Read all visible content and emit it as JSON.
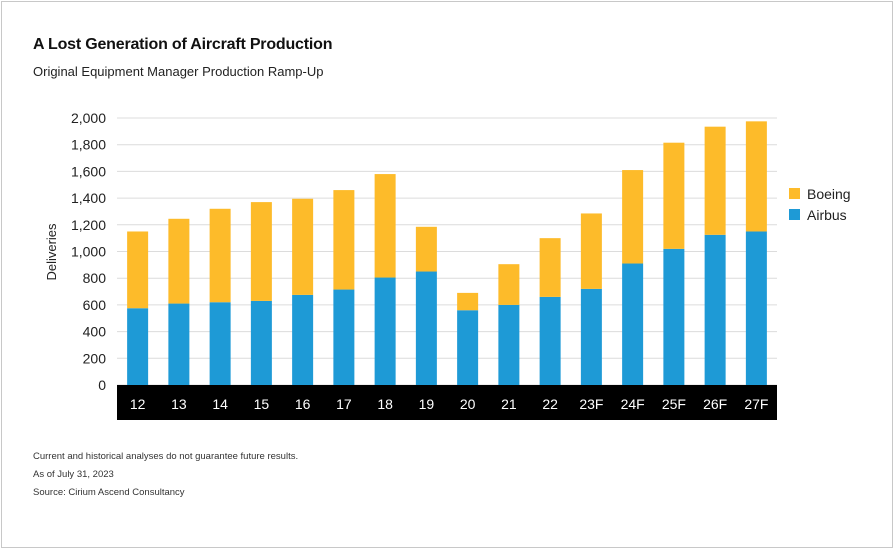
{
  "header": {
    "title": "A Lost Generation of Aircraft Production",
    "subtitle": "Original Equipment Manager Production Ramp-Up"
  },
  "footnotes": [
    "Current and historical analyses do not guarantee future results.",
    "As of July 31, 2023",
    "Source: Cirium Ascend Consultancy"
  ],
  "chart_data": {
    "type": "bar",
    "stacked": true,
    "categories": [
      "12",
      "13",
      "14",
      "15",
      "16",
      "17",
      "18",
      "19",
      "20",
      "21",
      "22",
      "23F",
      "24F",
      "25F",
      "26F",
      "27F"
    ],
    "series": [
      {
        "name": "Airbus",
        "color": "#1e9ad6",
        "values": [
          575,
          610,
          620,
          630,
          675,
          715,
          805,
          850,
          560,
          600,
          660,
          720,
          910,
          1020,
          1125,
          1150
        ]
      },
      {
        "name": "Boeing",
        "color": "#fdbb2a",
        "values": [
          575,
          635,
          700,
          740,
          720,
          745,
          775,
          335,
          130,
          305,
          440,
          565,
          700,
          795,
          810,
          825
        ]
      }
    ],
    "ylabel": "Deliveries",
    "ylim": [
      0,
      2000
    ],
    "yticks": [
      0,
      200,
      400,
      600,
      800,
      1000,
      1200,
      1400,
      1600,
      1800,
      2000
    ],
    "ytick_labels": [
      "0",
      "200",
      "400",
      "600",
      "800",
      "1,000",
      "1,200",
      "1,400",
      "1,600",
      "1,800",
      "2,000"
    ],
    "legend": {
      "position": "right",
      "entries": [
        "Boeing",
        "Airbus"
      ]
    },
    "grid": true,
    "category_band_color": "#000000"
  }
}
